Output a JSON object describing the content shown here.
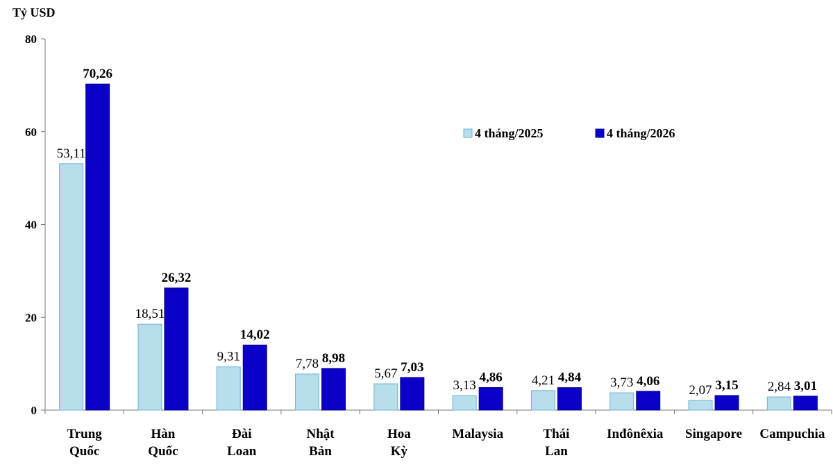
{
  "chart_data": {
    "type": "bar",
    "ylabel": "Tỷ USD",
    "ylim": [
      0,
      80
    ],
    "yticks": [
      0,
      20,
      40,
      60,
      80
    ],
    "categories": [
      [
        "Trung",
        "Quốc"
      ],
      [
        "Hàn",
        "Quốc"
      ],
      [
        "Đài",
        "Loan"
      ],
      [
        "Nhật",
        "Bản"
      ],
      [
        "Hoa",
        "Kỳ"
      ],
      [
        "Malaysia"
      ],
      [
        "Thái",
        "Lan"
      ],
      [
        "Inđônêxia"
      ],
      [
        "Singapore"
      ],
      [
        "Campuchia"
      ]
    ],
    "series": [
      {
        "name": "4 tháng/2025",
        "color": "#B8DEEC",
        "values": [
          53.11,
          18.51,
          9.31,
          7.78,
          5.67,
          3.13,
          4.21,
          3.73,
          2.07,
          2.84
        ],
        "labels": [
          "53,11",
          "18,51",
          "9,31",
          "7,78",
          "5,67",
          "3,13",
          "4,21",
          "3,73",
          "2,07",
          "2,84"
        ]
      },
      {
        "name": "4 tháng/2026",
        "color": "#0A00C8",
        "values": [
          70.26,
          26.32,
          14.02,
          8.98,
          7.03,
          4.86,
          4.84,
          4.06,
          3.15,
          3.01
        ],
        "labels": [
          "70,26",
          "26,32",
          "14,02",
          "8,98",
          "7,03",
          "4,86",
          "4,84",
          "4,06",
          "3,15",
          "3,01"
        ]
      }
    ],
    "legend_position": "top-right",
    "grid": false
  }
}
